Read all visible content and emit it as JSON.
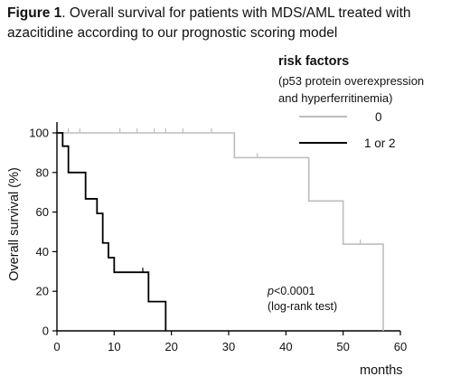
{
  "figure": {
    "label": "Figure 1",
    "caption": ". Overall survival for patients with MDS/AML treated with azacitidine according to our prognostic scoring model"
  },
  "chart_data": {
    "type": "line",
    "step": true,
    "xlabel": "months",
    "ylabel": "Overall survival (%)",
    "xlim": [
      0,
      60
    ],
    "ylim": [
      0,
      100
    ],
    "xticks": [
      "0",
      "10",
      "20",
      "30",
      "40",
      "50",
      "60"
    ],
    "yticks": [
      "0",
      "20",
      "40",
      "60",
      "80",
      "100"
    ],
    "grid": false,
    "legend": {
      "title": "risk factors",
      "subtitle_lines": [
        "(p53 protein overexpression",
        "and hyperferritinemia)"
      ],
      "placement": "top-right"
    },
    "series": [
      {
        "name": "0",
        "color": "#bdbdbd",
        "points": [
          [
            0,
            100
          ],
          [
            31,
            100
          ],
          [
            31,
            87.5
          ],
          [
            44,
            87.5
          ],
          [
            44,
            65.6
          ],
          [
            50,
            65.6
          ],
          [
            50,
            43.8
          ],
          [
            57,
            43.8
          ],
          [
            57,
            0
          ]
        ],
        "censored": [
          [
            2,
            100
          ],
          [
            4,
            100
          ],
          [
            11,
            100
          ],
          [
            14,
            100
          ],
          [
            17,
            100
          ],
          [
            19,
            100
          ],
          [
            22,
            100
          ],
          [
            27,
            100
          ],
          [
            35,
            87.5
          ],
          [
            53,
            43.8
          ]
        ]
      },
      {
        "name": "1 or 2",
        "color": "#000000",
        "points": [
          [
            0,
            100
          ],
          [
            1,
            100
          ],
          [
            1,
            93.3
          ],
          [
            2,
            93.3
          ],
          [
            2,
            80
          ],
          [
            5,
            80
          ],
          [
            5,
            66.7
          ],
          [
            7,
            66.7
          ],
          [
            7,
            59.3
          ],
          [
            8,
            59.3
          ],
          [
            8,
            44.4
          ],
          [
            9,
            44.4
          ],
          [
            9,
            37
          ],
          [
            10,
            37
          ],
          [
            10,
            29.6
          ],
          [
            16,
            29.6
          ],
          [
            16,
            14.8
          ],
          [
            19,
            14.8
          ],
          [
            19,
            0
          ]
        ],
        "censored": [
          [
            15,
            29.6
          ]
        ]
      }
    ],
    "annotation": {
      "p_symbol": "p",
      "p_value": "<0.0001",
      "test": "(log-rank test)"
    }
  }
}
